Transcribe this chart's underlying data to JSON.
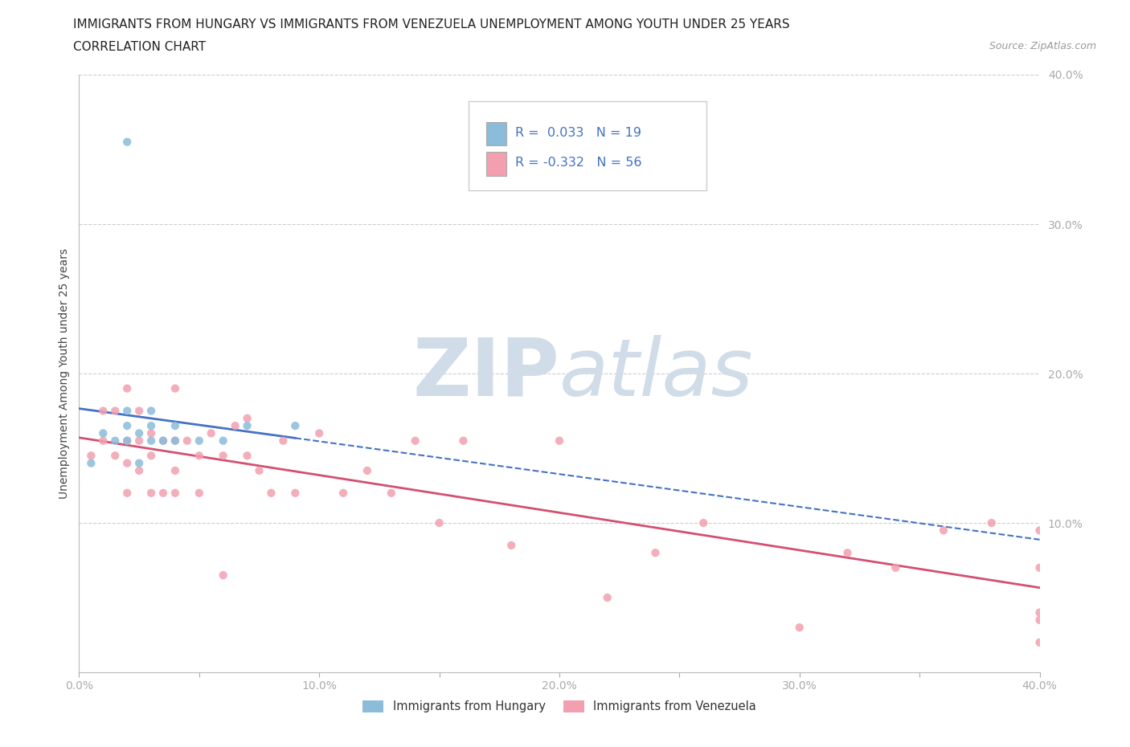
{
  "title_line1": "IMMIGRANTS FROM HUNGARY VS IMMIGRANTS FROM VENEZUELA UNEMPLOYMENT AMONG YOUTH UNDER 25 YEARS",
  "title_line2": "CORRELATION CHART",
  "source_text": "Source: ZipAtlas.com",
  "ylabel": "Unemployment Among Youth under 25 years",
  "xlim": [
    0.0,
    0.4
  ],
  "ylim": [
    0.0,
    0.4
  ],
  "xtick_vals": [
    0.0,
    0.05,
    0.1,
    0.15,
    0.2,
    0.25,
    0.3,
    0.35,
    0.4
  ],
  "xtick_labels": [
    "0.0%",
    "",
    "10.0%",
    "",
    "20.0%",
    "",
    "30.0%",
    "",
    "40.0%"
  ],
  "ytick_vals": [
    0.1,
    0.2,
    0.3,
    0.4
  ],
  "ytick_labels": [
    "10.0%",
    "20.0%",
    "30.0%",
    "40.0%"
  ],
  "hungary_color": "#8BBCDA",
  "venezuela_color": "#F2A0B0",
  "hungary_line_color": "#4472C4",
  "venezuela_line_color": "#D45070",
  "hungary_R": 0.033,
  "hungary_N": 19,
  "venezuela_R": -0.332,
  "venezuela_N": 56,
  "legend_R_color": "#4472C4",
  "watermark_zip": "ZIP",
  "watermark_atlas": "atlas",
  "watermark_color": "#D0DCE8",
  "background_color": "#FFFFFF",
  "grid_color": "#C8C8C8",
  "hungary_x": [
    0.005,
    0.01,
    0.015,
    0.02,
    0.02,
    0.02,
    0.025,
    0.025,
    0.03,
    0.03,
    0.03,
    0.035,
    0.04,
    0.04,
    0.05,
    0.06,
    0.07,
    0.09,
    0.02
  ],
  "hungary_y": [
    0.14,
    0.16,
    0.155,
    0.155,
    0.165,
    0.175,
    0.14,
    0.16,
    0.155,
    0.165,
    0.175,
    0.155,
    0.155,
    0.165,
    0.155,
    0.155,
    0.165,
    0.165,
    0.355
  ],
  "venezuela_x": [
    0.005,
    0.01,
    0.01,
    0.015,
    0.015,
    0.02,
    0.02,
    0.02,
    0.02,
    0.025,
    0.025,
    0.025,
    0.03,
    0.03,
    0.03,
    0.035,
    0.035,
    0.04,
    0.04,
    0.04,
    0.04,
    0.045,
    0.05,
    0.05,
    0.055,
    0.06,
    0.06,
    0.065,
    0.07,
    0.07,
    0.075,
    0.08,
    0.085,
    0.09,
    0.1,
    0.11,
    0.12,
    0.13,
    0.14,
    0.15,
    0.16,
    0.18,
    0.2,
    0.22,
    0.24,
    0.26,
    0.3,
    0.32,
    0.34,
    0.36,
    0.38,
    0.4,
    0.4,
    0.4,
    0.4,
    0.4
  ],
  "venezuela_y": [
    0.145,
    0.155,
    0.175,
    0.145,
    0.175,
    0.12,
    0.14,
    0.155,
    0.19,
    0.135,
    0.155,
    0.175,
    0.12,
    0.145,
    0.16,
    0.12,
    0.155,
    0.12,
    0.135,
    0.155,
    0.19,
    0.155,
    0.12,
    0.145,
    0.16,
    0.065,
    0.145,
    0.165,
    0.145,
    0.17,
    0.135,
    0.12,
    0.155,
    0.12,
    0.16,
    0.12,
    0.135,
    0.12,
    0.155,
    0.1,
    0.155,
    0.085,
    0.155,
    0.05,
    0.08,
    0.1,
    0.03,
    0.08,
    0.07,
    0.095,
    0.1,
    0.02,
    0.035,
    0.07,
    0.04,
    0.095
  ]
}
